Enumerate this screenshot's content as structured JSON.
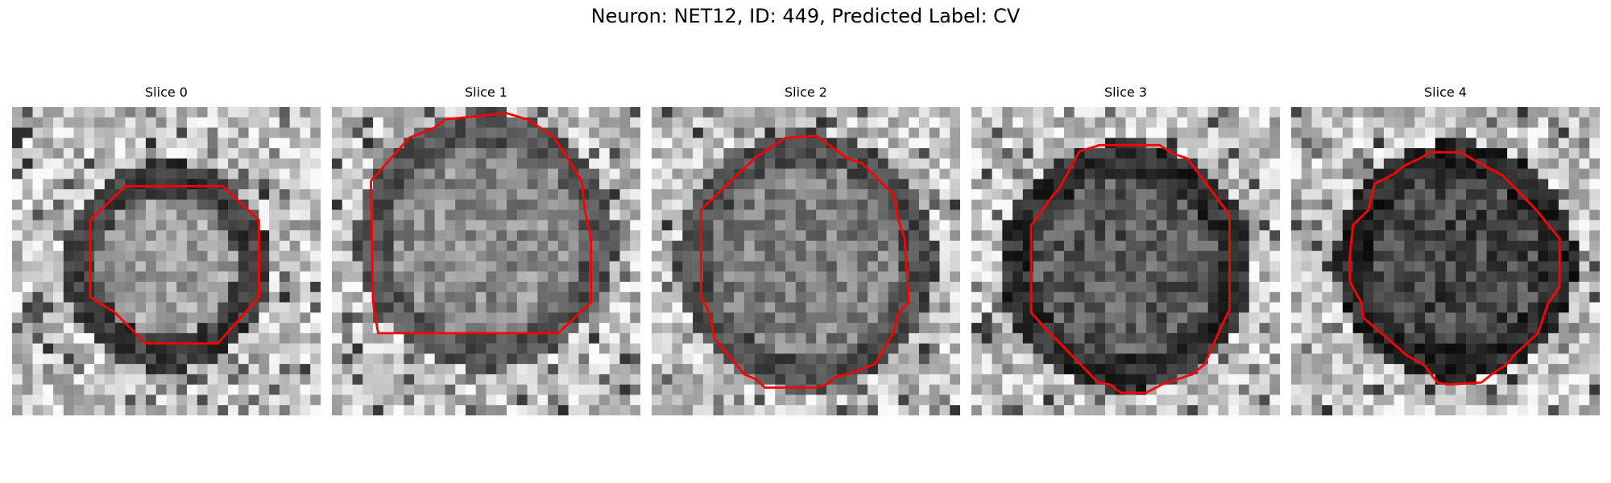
{
  "figure": {
    "title": "Neuron: NET12, ID: 449, Predicted Label: CV"
  },
  "slices": [
    {
      "title": "Slice 0"
    },
    {
      "title": "Slice 1"
    },
    {
      "title": "Slice 2"
    },
    {
      "title": "Slice 3"
    },
    {
      "title": "Slice 4"
    }
  ],
  "contour_color": "#ff0000",
  "image_colormap": "gray"
}
